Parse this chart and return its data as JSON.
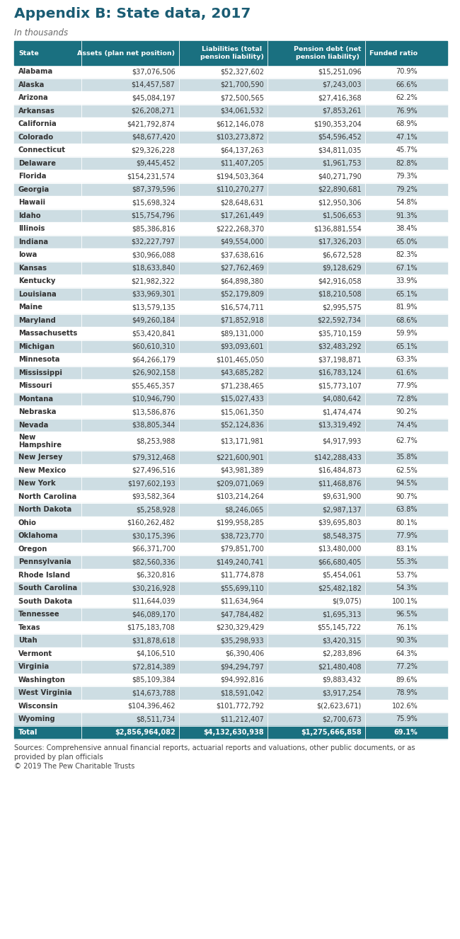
{
  "title": "Appendix B: State data, 2017",
  "subtitle": "In thousands",
  "title_color": "#1a5c73",
  "subtitle_color": "#666666",
  "header_bg": "#1a7080",
  "header_text_color": "#ffffff",
  "col_headers": [
    "State",
    "Assets (plan net position)",
    "Liabilities (total\npension liability)",
    "Pension debt (net\npension liability)",
    "Funded ratio"
  ],
  "odd_row_bg": "#ffffff",
  "even_row_bg": "#cddde3",
  "total_row_bg": "#1a7080",
  "total_text_color": "#ffffff",
  "footer_text": "Sources: Comprehensive annual financial reports, actuarial reports and valuations, other public documents, or as\nprovided by plan officials",
  "footer2_text": "© 2019 The Pew Charitable Trusts",
  "rows": [
    [
      "Alabama",
      "$37,076,506",
      "$52,327,602",
      "$15,251,096",
      "70.9%"
    ],
    [
      "Alaska",
      "$14,457,587",
      "$21,700,590",
      "$7,243,003",
      "66.6%"
    ],
    [
      "Arizona",
      "$45,084,197",
      "$72,500,565",
      "$27,416,368",
      "62.2%"
    ],
    [
      "Arkansas",
      "$26,208,271",
      "$34,061,532",
      "$7,853,261",
      "76.9%"
    ],
    [
      "California",
      "$421,792,874",
      "$612,146,078",
      "$190,353,204",
      "68.9%"
    ],
    [
      "Colorado",
      "$48,677,420",
      "$103,273,872",
      "$54,596,452",
      "47.1%"
    ],
    [
      "Connecticut",
      "$29,326,228",
      "$64,137,263",
      "$34,811,035",
      "45.7%"
    ],
    [
      "Delaware",
      "$9,445,452",
      "$11,407,205",
      "$1,961,753",
      "82.8%"
    ],
    [
      "Florida",
      "$154,231,574",
      "$194,503,364",
      "$40,271,790",
      "79.3%"
    ],
    [
      "Georgia",
      "$87,379,596",
      "$110,270,277",
      "$22,890,681",
      "79.2%"
    ],
    [
      "Hawaii",
      "$15,698,324",
      "$28,648,631",
      "$12,950,306",
      "54.8%"
    ],
    [
      "Idaho",
      "$15,754,796",
      "$17,261,449",
      "$1,506,653",
      "91.3%"
    ],
    [
      "Illinois",
      "$85,386,816",
      "$222,268,370",
      "$136,881,554",
      "38.4%"
    ],
    [
      "Indiana",
      "$32,227,797",
      "$49,554,000",
      "$17,326,203",
      "65.0%"
    ],
    [
      "Iowa",
      "$30,966,088",
      "$37,638,616",
      "$6,672,528",
      "82.3%"
    ],
    [
      "Kansas",
      "$18,633,840",
      "$27,762,469",
      "$9,128,629",
      "67.1%"
    ],
    [
      "Kentucky",
      "$21,982,322",
      "$64,898,380",
      "$42,916,058",
      "33.9%"
    ],
    [
      "Louisiana",
      "$33,969,301",
      "$52,179,809",
      "$18,210,508",
      "65.1%"
    ],
    [
      "Maine",
      "$13,579,135",
      "$16,574,711",
      "$2,995,575",
      "81.9%"
    ],
    [
      "Maryland",
      "$49,260,184",
      "$71,852,918",
      "$22,592,734",
      "68.6%"
    ],
    [
      "Massachusetts",
      "$53,420,841",
      "$89,131,000",
      "$35,710,159",
      "59.9%"
    ],
    [
      "Michigan",
      "$60,610,310",
      "$93,093,601",
      "$32,483,292",
      "65.1%"
    ],
    [
      "Minnesota",
      "$64,266,179",
      "$101,465,050",
      "$37,198,871",
      "63.3%"
    ],
    [
      "Mississippi",
      "$26,902,158",
      "$43,685,282",
      "$16,783,124",
      "61.6%"
    ],
    [
      "Missouri",
      "$55,465,357",
      "$71,238,465",
      "$15,773,107",
      "77.9%"
    ],
    [
      "Montana",
      "$10,946,790",
      "$15,027,433",
      "$4,080,642",
      "72.8%"
    ],
    [
      "Nebraska",
      "$13,586,876",
      "$15,061,350",
      "$1,474,474",
      "90.2%"
    ],
    [
      "Nevada",
      "$38,805,344",
      "$52,124,836",
      "$13,319,492",
      "74.4%"
    ],
    [
      "New\nHampshire",
      "$8,253,988",
      "$13,171,981",
      "$4,917,993",
      "62.7%"
    ],
    [
      "New Jersey",
      "$79,312,468",
      "$221,600,901",
      "$142,288,433",
      "35.8%"
    ],
    [
      "New Mexico",
      "$27,496,516",
      "$43,981,389",
      "$16,484,873",
      "62.5%"
    ],
    [
      "New York",
      "$197,602,193",
      "$209,071,069",
      "$11,468,876",
      "94.5%"
    ],
    [
      "North Carolina",
      "$93,582,364",
      "$103,214,264",
      "$9,631,900",
      "90.7%"
    ],
    [
      "North Dakota",
      "$5,258,928",
      "$8,246,065",
      "$2,987,137",
      "63.8%"
    ],
    [
      "Ohio",
      "$160,262,482",
      "$199,958,285",
      "$39,695,803",
      "80.1%"
    ],
    [
      "Oklahoma",
      "$30,175,396",
      "$38,723,770",
      "$8,548,375",
      "77.9%"
    ],
    [
      "Oregon",
      "$66,371,700",
      "$79,851,700",
      "$13,480,000",
      "83.1%"
    ],
    [
      "Pennsylvania",
      "$82,560,336",
      "$149,240,741",
      "$66,680,405",
      "55.3%"
    ],
    [
      "Rhode Island",
      "$6,320,816",
      "$11,774,878",
      "$5,454,061",
      "53.7%"
    ],
    [
      "South Carolina",
      "$30,216,928",
      "$55,699,110",
      "$25,482,182",
      "54.3%"
    ],
    [
      "South Dakota",
      "$11,644,039",
      "$11,634,964",
      "$(9,075)",
      "100.1%"
    ],
    [
      "Tennessee",
      "$46,089,170",
      "$47,784,482",
      "$1,695,313",
      "96.5%"
    ],
    [
      "Texas",
      "$175,183,708",
      "$230,329,429",
      "$55,145,722",
      "76.1%"
    ],
    [
      "Utah",
      "$31,878,618",
      "$35,298,933",
      "$3,420,315",
      "90.3%"
    ],
    [
      "Vermont",
      "$4,106,510",
      "$6,390,406",
      "$2,283,896",
      "64.3%"
    ],
    [
      "Virginia",
      "$72,814,389",
      "$94,294,797",
      "$21,480,408",
      "77.2%"
    ],
    [
      "Washington",
      "$85,109,384",
      "$94,992,816",
      "$9,883,432",
      "89.6%"
    ],
    [
      "West Virginia",
      "$14,673,788",
      "$18,591,042",
      "$3,917,254",
      "78.9%"
    ],
    [
      "Wisconsin",
      "$104,396,462",
      "$101,772,792",
      "$(2,623,671)",
      "102.6%"
    ],
    [
      "Wyoming",
      "$8,511,734",
      "$11,212,407",
      "$2,700,673",
      "75.9%"
    ],
    [
      "Total",
      "$2,856,964,082",
      "$4,132,630,938",
      "$1,275,666,858",
      "69.1%"
    ]
  ]
}
